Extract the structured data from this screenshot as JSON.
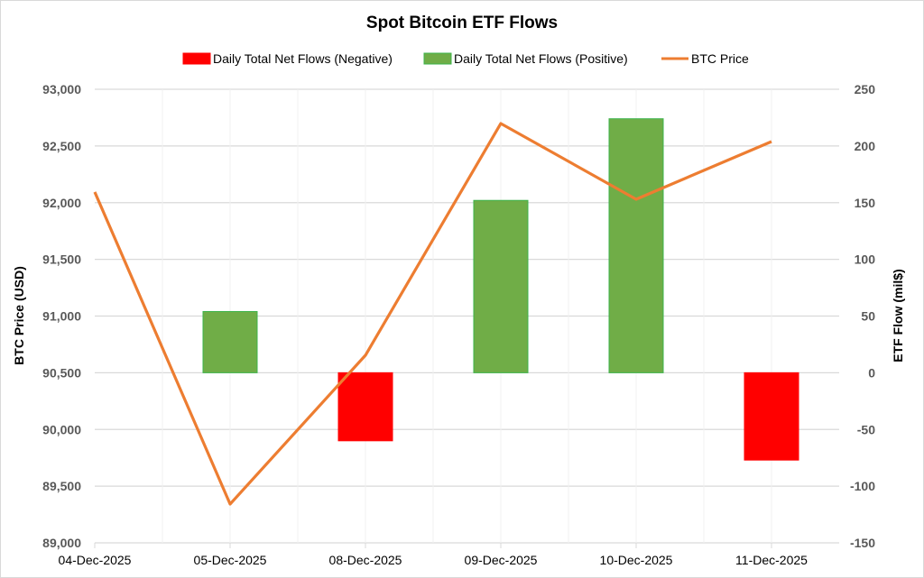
{
  "chart_data": {
    "type": "bar+line",
    "title": "Spot Bitcoin ETF Flows",
    "categories": [
      "04-Dec-2025",
      "05-Dec-2025",
      "08-Dec-2025",
      "09-Dec-2025",
      "10-Dec-2025",
      "11-Dec-2025"
    ],
    "ylabel_left": "BTC Price (USD)",
    "ylabel_right": "ETF Flow (mil$)",
    "ylim_left": [
      89000,
      93000
    ],
    "yticks_left": [
      "89,000",
      "89,500",
      "90,000",
      "90,500",
      "91,000",
      "91,500",
      "92,000",
      "92,500",
      "93,000"
    ],
    "ylim_right": [
      -150,
      250
    ],
    "yticks_right": [
      "-150",
      "-100",
      "-50",
      "0",
      "50",
      "100",
      "150",
      "200",
      "250"
    ],
    "grid": true,
    "legend_position": "top",
    "series": [
      {
        "name": "Daily Total Net Flows (Negative)",
        "type": "bar",
        "axis": "right",
        "color": "#ff0000",
        "values": [
          0,
          0,
          -60,
          0,
          0,
          -77
        ]
      },
      {
        "name": "Daily Total Net Flows (Positive)",
        "type": "bar",
        "axis": "right",
        "color": "#70ad47",
        "values": [
          0,
          54,
          0,
          152,
          224,
          0
        ]
      },
      {
        "name": "BTC Price",
        "type": "line",
        "axis": "left",
        "color": "#ed7d31",
        "values": [
          92094,
          89342,
          90654,
          92698,
          92030,
          92539
        ]
      }
    ]
  }
}
